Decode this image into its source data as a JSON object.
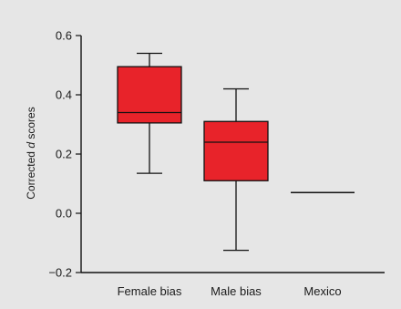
{
  "chart_data": {
    "type": "box",
    "categories": [
      "Female bias",
      "Male bias",
      "Mexico"
    ],
    "boxes": [
      {
        "category": "Female bias",
        "whisker_low": 0.135,
        "q1": 0.305,
        "median": 0.34,
        "q3": 0.495,
        "whisker_high": 0.54
      },
      {
        "category": "Male bias",
        "whisker_low": -0.125,
        "q1": 0.11,
        "median": 0.24,
        "q3": 0.31,
        "whisker_high": 0.42
      },
      {
        "category": "Mexico",
        "value": 0.07
      }
    ],
    "ylabel_prefix": "Corrected ",
    "ylabel_italic": "d",
    "ylabel_suffix": " scores",
    "yticks": [
      "0.6",
      "0.4",
      "0.2",
      "0.0",
      "−0.2"
    ],
    "ytick_values": [
      0.6,
      0.4,
      0.2,
      0.0,
      -0.2
    ],
    "ylim": [
      -0.2,
      0.6
    ],
    "grid": false,
    "colors": {
      "box_fill": "#e8232a",
      "stroke": "#111111",
      "background": "#e6e6e6"
    }
  }
}
